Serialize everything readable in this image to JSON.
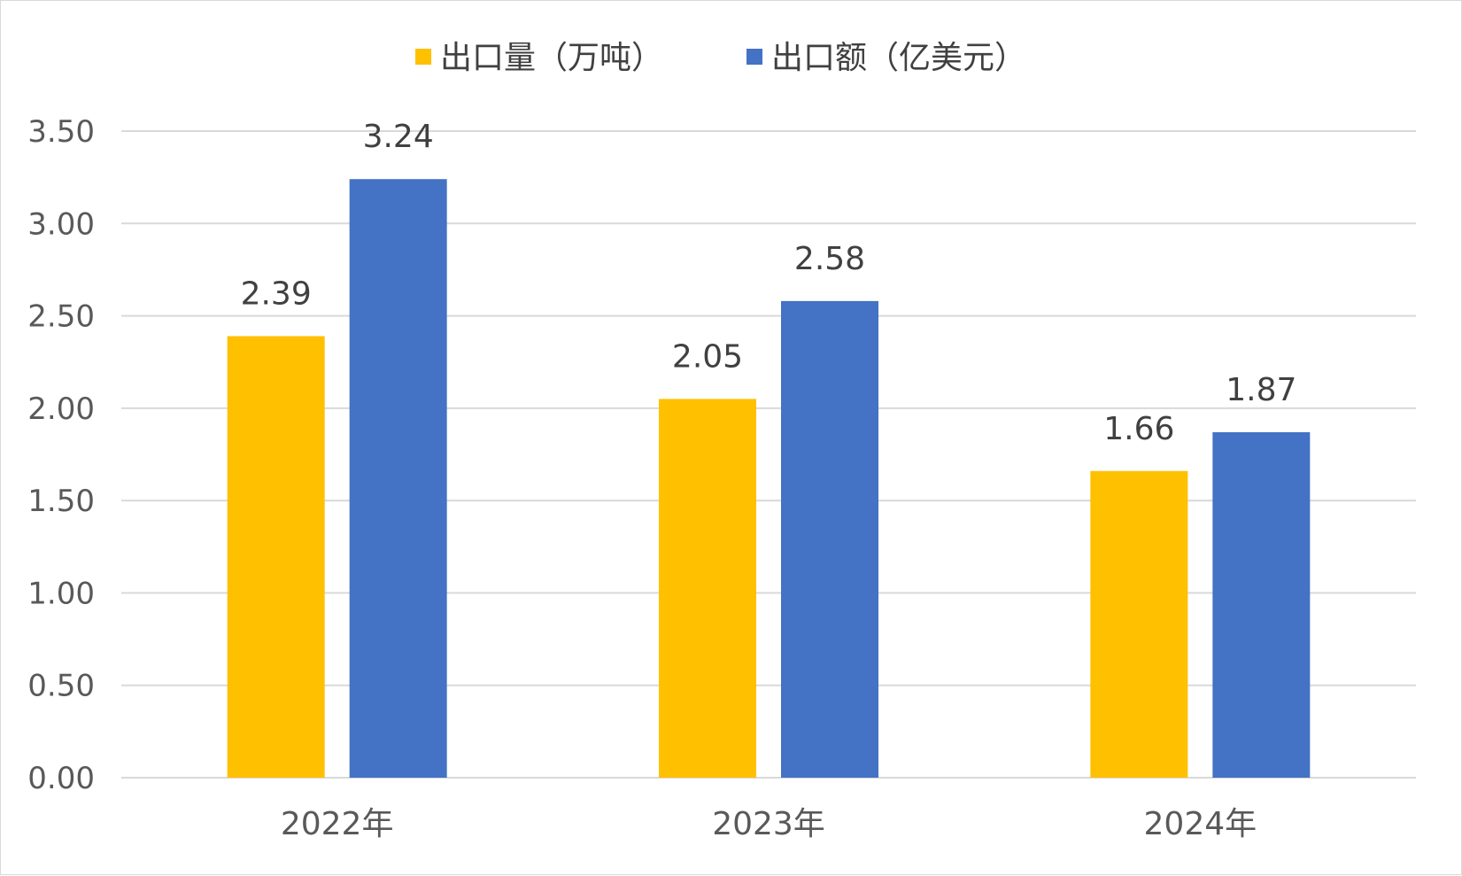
{
  "chart_data": {
    "type": "bar",
    "categories": [
      "2022年",
      "2023年",
      "2024年"
    ],
    "series": [
      {
        "name": "出口量（万吨）",
        "values": [
          2.39,
          2.05,
          1.66
        ],
        "labels": [
          "2.39",
          "2.05",
          "1.66"
        ],
        "color": "#FFC000"
      },
      {
        "name": "出口额（亿美元）",
        "values": [
          3.24,
          2.58,
          1.87
        ],
        "labels": [
          "3.24",
          "2.58",
          "1.87"
        ],
        "color": "#4472C4"
      }
    ],
    "title": "",
    "xlabel": "",
    "ylabel": "",
    "ylim": [
      0,
      3.5
    ],
    "yticks": [
      0,
      0.5,
      1.0,
      1.5,
      2.0,
      2.5,
      3.0,
      3.5
    ],
    "ytick_labels": [
      "0.00",
      "0.50",
      "1.00",
      "1.50",
      "2.00",
      "2.50",
      "3.00",
      "3.50"
    ],
    "grid": true,
    "legend_position": "top-center",
    "gridline_color": "#d9d9d9"
  }
}
